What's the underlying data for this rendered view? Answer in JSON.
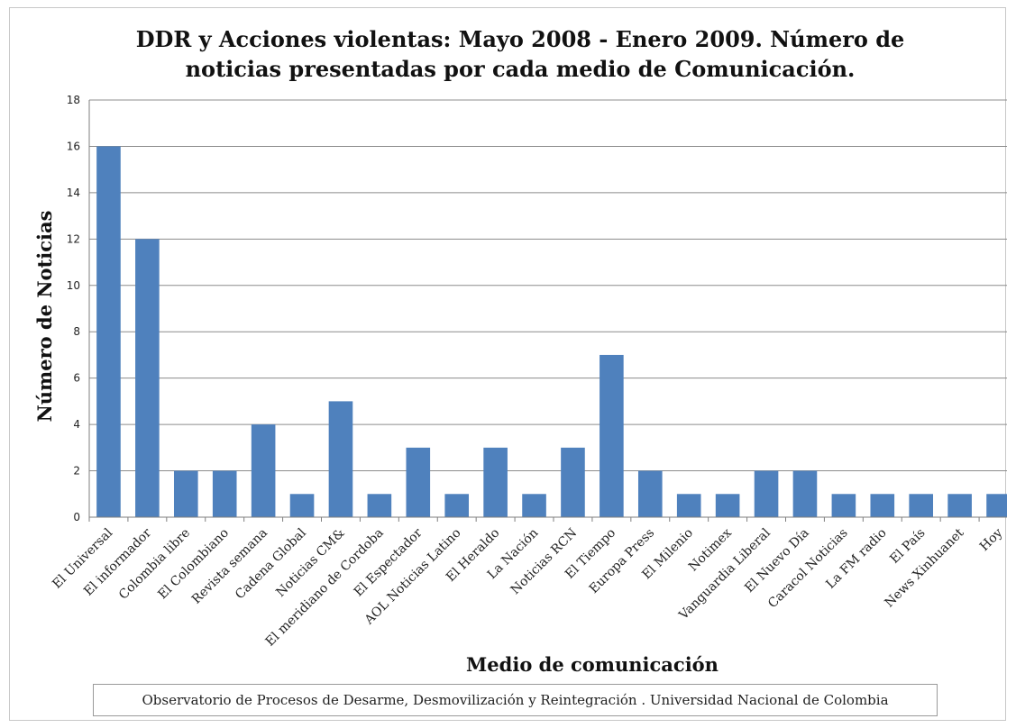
{
  "chart_data": {
    "type": "bar",
    "title_lines": [
      "DDR y Acciones violentas: Mayo 2008 - Enero 2009. Número de",
      "noticias presentadas por cada medio de Comunicación."
    ],
    "xlabel": "Medio de comunicación",
    "ylabel": "Número de Noticias",
    "ylim": [
      0,
      18
    ],
    "yticks": [
      "0",
      "2",
      "4",
      "6",
      "8",
      "10",
      "12",
      "14",
      "16",
      "18"
    ],
    "grid": true,
    "bar_color": "#4f81bd",
    "categories": [
      "El Universal",
      "El informador",
      "Colombia libre",
      "El Colombiano",
      "Revista semana",
      "Cadena Global",
      "Noticias CM&",
      "El meridiano de Cordoba",
      "El Espectador",
      "AOL Noticias Latino",
      "El Heraldo",
      "La Nación",
      "Noticias RCN",
      "El Tiempo",
      "Europa Press",
      "El Milenio",
      "Notimex",
      "Vanguardia Liberal",
      "El Nuevo Día",
      "Caracol Noticias",
      "La FM radio",
      "El País",
      "News Xinhuanet",
      "Hoy"
    ],
    "values": [
      16,
      12,
      2,
      2,
      4,
      1,
      5,
      1,
      3,
      1,
      3,
      1,
      3,
      7,
      2,
      1,
      1,
      2,
      2,
      1,
      1,
      1,
      1,
      1
    ]
  },
  "source_note": "Observatorio de Procesos de Desarme, Desmovilización y Reintegración . Universidad Nacional de Colombia"
}
